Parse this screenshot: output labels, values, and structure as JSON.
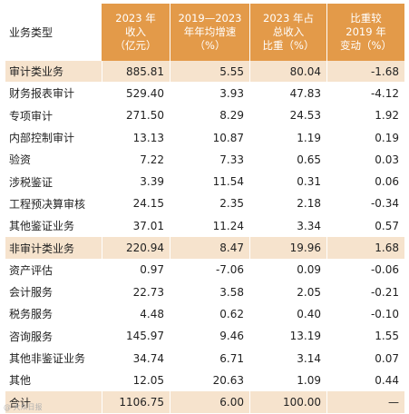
{
  "table": {
    "headers": {
      "col0": "业务类型",
      "col1": "2023 年\n收入\n（亿元）",
      "col2": "2019—2023\n年年均增速\n（%）",
      "col3": "2023 年占\n总收入\n比重（%）",
      "col4": "比重较\n2019 年\n变动（%）"
    },
    "rows": [
      {
        "label": "审计类业务",
        "v1": "885.81",
        "v2": "5.55",
        "v3": "80.04",
        "v4": "-1.68",
        "style": "dark"
      },
      {
        "label": "财务报表审计",
        "v1": "529.40",
        "v2": "3.93",
        "v3": "47.83",
        "v4": "-4.12",
        "style": "light"
      },
      {
        "label": "专项审计",
        "v1": "271.50",
        "v2": "8.29",
        "v3": "24.53",
        "v4": "1.92",
        "style": "light"
      },
      {
        "label": "内部控制审计",
        "v1": "13.13",
        "v2": "10.87",
        "v3": "1.19",
        "v4": "0.19",
        "style": "light"
      },
      {
        "label": "验资",
        "v1": "7.22",
        "v2": "7.33",
        "v3": "0.65",
        "v4": "0.03",
        "style": "light"
      },
      {
        "label": "涉税鉴证",
        "v1": "3.39",
        "v2": "11.54",
        "v3": "0.31",
        "v4": "0.06",
        "style": "light"
      },
      {
        "label": "工程预决算审核",
        "v1": "24.15",
        "v2": "2.35",
        "v3": "2.18",
        "v4": "-0.34",
        "style": "light"
      },
      {
        "label": "其他鉴证业务",
        "v1": "37.01",
        "v2": "11.24",
        "v3": "3.34",
        "v4": "0.57",
        "style": "light"
      },
      {
        "label": "非审计类业务",
        "v1": "220.94",
        "v2": "8.47",
        "v3": "19.96",
        "v4": "1.68",
        "style": "dark"
      },
      {
        "label": "资产评估",
        "v1": "0.97",
        "v2": "-7.06",
        "v3": "0.09",
        "v4": "-0.06",
        "style": "light"
      },
      {
        "label": "会计服务",
        "v1": "22.73",
        "v2": "3.58",
        "v3": "2.05",
        "v4": "-0.21",
        "style": "light"
      },
      {
        "label": "税务服务",
        "v1": "4.48",
        "v2": "0.62",
        "v3": "0.40",
        "v4": "-0.10",
        "style": "light"
      },
      {
        "label": "咨询服务",
        "v1": "145.97",
        "v2": "9.46",
        "v3": "13.19",
        "v4": "1.55",
        "style": "light"
      },
      {
        "label": "其他非鉴证业务",
        "v1": "34.74",
        "v2": "6.71",
        "v3": "3.14",
        "v4": "0.07",
        "style": "light"
      },
      {
        "label": "其他",
        "v1": "12.05",
        "v2": "20.63",
        "v3": "1.09",
        "v4": "0.44",
        "style": "light"
      },
      {
        "label": "合计",
        "v1": "1106.75",
        "v2": "6.00",
        "v3": "100.00",
        "v4": "—",
        "style": "total"
      }
    ]
  },
  "watermark": "@ 大众日报",
  "colors": {
    "header_bg": "#e39a49",
    "dark_row": "#f6e3cd",
    "light_row": "#ffffff"
  }
}
